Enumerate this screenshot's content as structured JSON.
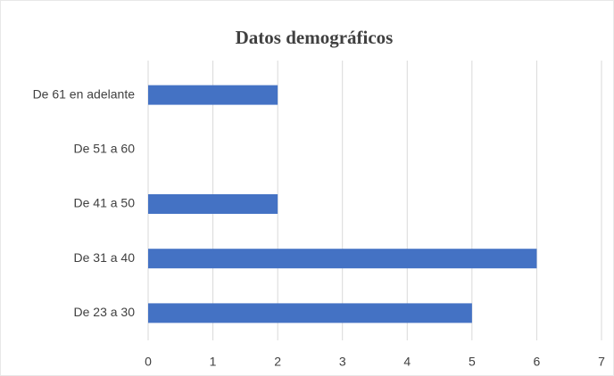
{
  "chart_data": {
    "type": "hbar",
    "title": "Datos demográficos",
    "categories": [
      "De 61 en adelante",
      "De 51 a 60",
      "De 41 a 50",
      "De 31 a 40",
      "De 23 a 30"
    ],
    "values": [
      2,
      0,
      2,
      6,
      5
    ],
    "color": "#4472c4",
    "xlim": [
      0,
      7
    ],
    "xticks": [
      0,
      1,
      2,
      3,
      4,
      5,
      6,
      7
    ],
    "grid": true
  }
}
